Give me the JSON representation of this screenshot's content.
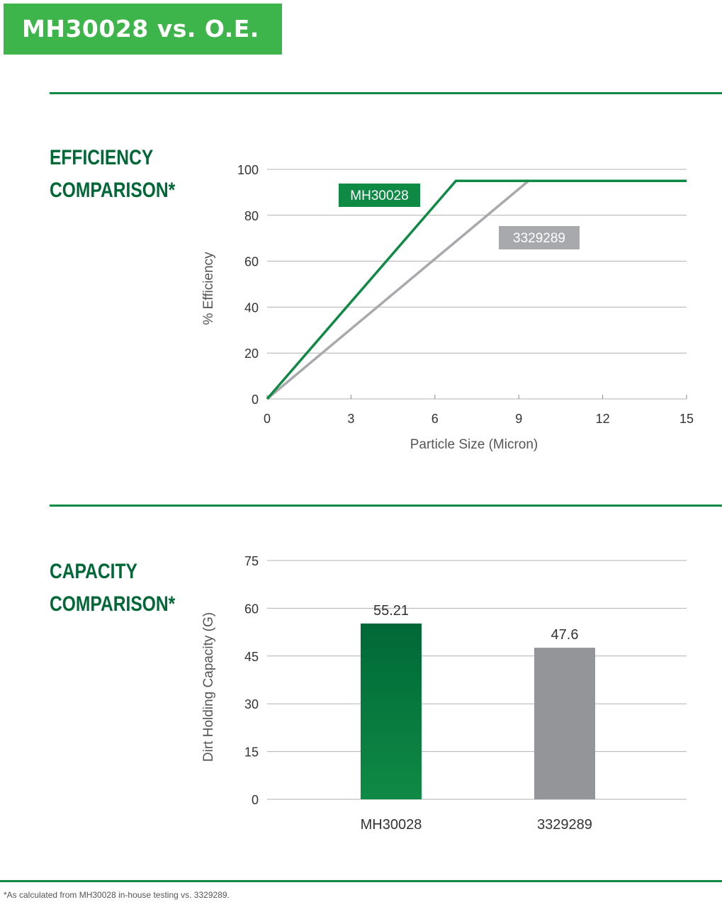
{
  "header": {
    "title": "MH30028 vs. O.E."
  },
  "efficiency": {
    "title_line1": "EFFICIENCY",
    "title_line2": "COMPARISON*"
  },
  "capacity": {
    "title_line1": "CAPACITY",
    "title_line2": "COMPARISON*"
  },
  "footnote": "*As calculated from MH30028 in-house testing vs. 3329289.",
  "colors": {
    "brand_green": "#3db54a",
    "dark_green": "#006837",
    "series_green": "#0f8a45",
    "series_gray": "#a7a9ac",
    "bar_gray": "#939598"
  },
  "chart_data": [
    {
      "type": "line",
      "xlabel": "Particle Size (Micron)",
      "ylabel": "% Efficiency",
      "xlim": [
        0,
        15
      ],
      "ylim": [
        0,
        100
      ],
      "xticks": [
        "0",
        "3",
        "6",
        "9",
        "12",
        "15"
      ],
      "yticks": [
        "0",
        "20",
        "40",
        "60",
        "80",
        "100"
      ],
      "grid": true,
      "series": [
        {
          "name": "MH30028",
          "color": "#0f8a45",
          "x": [
            0,
            6.75,
            15
          ],
          "y": [
            0,
            95,
            95
          ]
        },
        {
          "name": "3329289",
          "color": "#a7a9ac",
          "x": [
            0,
            9.35,
            15
          ],
          "y": [
            0,
            95,
            95
          ]
        }
      ]
    },
    {
      "type": "bar",
      "ylabel": "Dirt Holding Capacity (G)",
      "ylim": [
        0,
        75
      ],
      "yticks": [
        "0",
        "15",
        "30",
        "45",
        "60",
        "75"
      ],
      "grid": true,
      "categories": [
        "MH30028",
        "3329289"
      ],
      "values": [
        55.21,
        47.6
      ],
      "value_labels": [
        "55.21",
        "47.6"
      ],
      "colors": [
        "#0f8a45",
        "#939598"
      ]
    }
  ]
}
